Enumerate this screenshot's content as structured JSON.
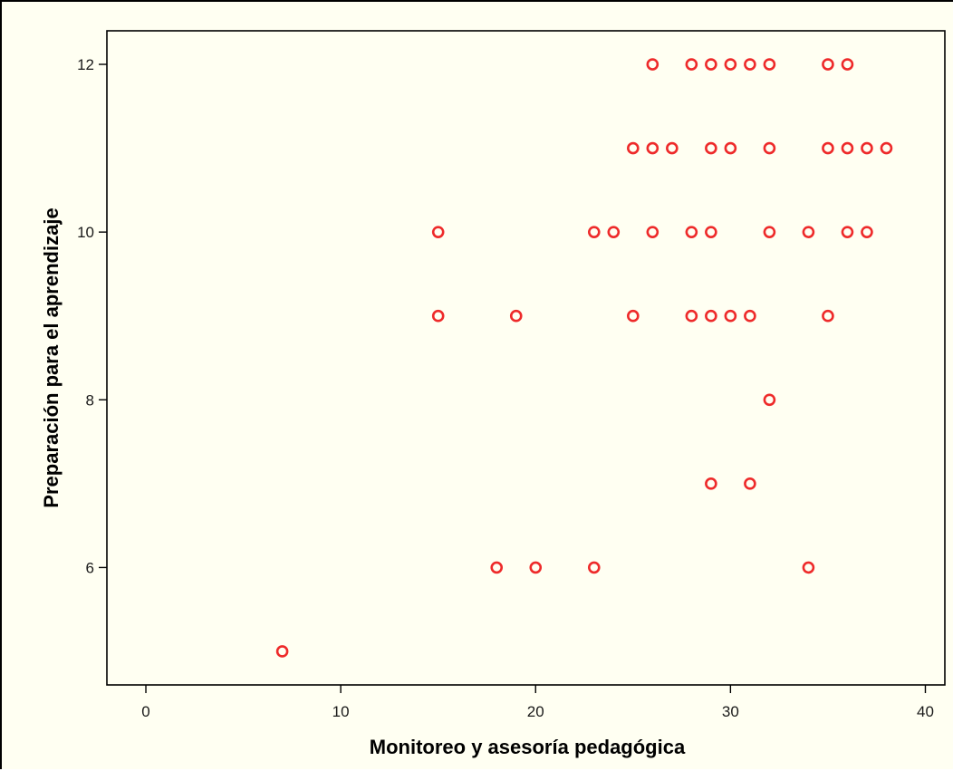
{
  "chart_data": {
    "type": "scatter",
    "title": "",
    "xlabel": "Monitoreo y asesoría pedagógica",
    "ylabel": "Preparación para el aprendizaje",
    "xlim": [
      -2,
      41
    ],
    "ylim": [
      4.6,
      12.4
    ],
    "xticks": [
      0,
      10,
      20,
      30,
      40
    ],
    "yticks": [
      6,
      8,
      10,
      12
    ],
    "grid": false,
    "marker_color": "#ee2a2a",
    "background_color": "#fffff2",
    "points": [
      {
        "x": 26,
        "y": 12
      },
      {
        "x": 28,
        "y": 12
      },
      {
        "x": 29,
        "y": 12
      },
      {
        "x": 30,
        "y": 12
      },
      {
        "x": 31,
        "y": 12
      },
      {
        "x": 32,
        "y": 12
      },
      {
        "x": 35,
        "y": 12
      },
      {
        "x": 36,
        "y": 12
      },
      {
        "x": 25,
        "y": 11
      },
      {
        "x": 26,
        "y": 11
      },
      {
        "x": 27,
        "y": 11
      },
      {
        "x": 29,
        "y": 11
      },
      {
        "x": 30,
        "y": 11
      },
      {
        "x": 32,
        "y": 11
      },
      {
        "x": 35,
        "y": 11
      },
      {
        "x": 36,
        "y": 11
      },
      {
        "x": 37,
        "y": 11
      },
      {
        "x": 38,
        "y": 11
      },
      {
        "x": 15,
        "y": 10
      },
      {
        "x": 23,
        "y": 10
      },
      {
        "x": 24,
        "y": 10
      },
      {
        "x": 26,
        "y": 10
      },
      {
        "x": 28,
        "y": 10
      },
      {
        "x": 29,
        "y": 10
      },
      {
        "x": 32,
        "y": 10
      },
      {
        "x": 34,
        "y": 10
      },
      {
        "x": 36,
        "y": 10
      },
      {
        "x": 37,
        "y": 10
      },
      {
        "x": 15,
        "y": 9
      },
      {
        "x": 19,
        "y": 9
      },
      {
        "x": 25,
        "y": 9
      },
      {
        "x": 28,
        "y": 9
      },
      {
        "x": 29,
        "y": 9
      },
      {
        "x": 30,
        "y": 9
      },
      {
        "x": 31,
        "y": 9
      },
      {
        "x": 35,
        "y": 9
      },
      {
        "x": 32,
        "y": 8
      },
      {
        "x": 29,
        "y": 7
      },
      {
        "x": 31,
        "y": 7
      },
      {
        "x": 18,
        "y": 6
      },
      {
        "x": 20,
        "y": 6
      },
      {
        "x": 23,
        "y": 6
      },
      {
        "x": 34,
        "y": 6
      },
      {
        "x": 7,
        "y": 5
      }
    ]
  }
}
